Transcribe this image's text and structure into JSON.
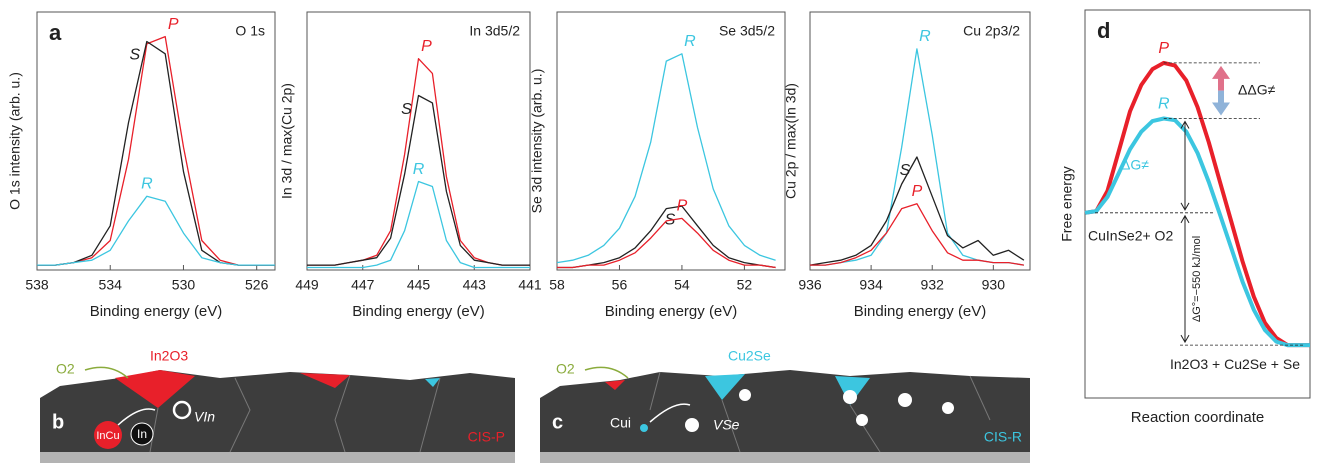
{
  "chart_data": [
    {
      "type": "line",
      "panel_label": "a",
      "title": "O 1s",
      "x_label": "Binding energy (eV)",
      "y_label": "O 1s intensity (arb. u.)",
      "x": [
        538,
        537,
        536,
        535,
        534,
        533,
        532,
        531,
        530,
        529,
        528,
        527,
        526,
        525
      ],
      "xlim": [
        538,
        525
      ],
      "xticks": [
        538,
        534,
        530,
        526
      ],
      "ylim": [
        0,
        1.05
      ],
      "series": [
        {
          "name": "P",
          "color": "#e8202a",
          "values": [
            0.02,
            0.02,
            0.03,
            0.05,
            0.12,
            0.45,
            0.92,
            0.95,
            0.5,
            0.12,
            0.04,
            0.02,
            0.02,
            0.02
          ]
        },
        {
          "name": "S",
          "color": "#222222",
          "values": [
            0.02,
            0.02,
            0.03,
            0.06,
            0.18,
            0.6,
            0.93,
            0.88,
            0.4,
            0.08,
            0.03,
            0.02,
            0.02,
            0.02
          ]
        },
        {
          "name": "R",
          "color": "#3cc6e0",
          "values": [
            0.02,
            0.02,
            0.03,
            0.04,
            0.08,
            0.2,
            0.3,
            0.28,
            0.15,
            0.05,
            0.03,
            0.02,
            0.02,
            0.02
          ]
        }
      ]
    },
    {
      "type": "line",
      "title": "In 3d5/2",
      "x_label": "Binding energy (eV)",
      "y_label": "In 3d / max(Cu 2p)",
      "x": [
        449,
        448.5,
        448,
        447.5,
        447,
        446.5,
        446,
        445.5,
        445,
        444.5,
        444,
        443.5,
        443,
        442.5,
        442,
        441.5,
        441
      ],
      "xlim": [
        449,
        441
      ],
      "xticks": [
        449,
        447,
        445,
        443,
        441
      ],
      "ylim": [
        0,
        1.05
      ],
      "series": [
        {
          "name": "P",
          "color": "#e8202a",
          "values": [
            0.02,
            0.02,
            0.02,
            0.03,
            0.04,
            0.06,
            0.16,
            0.47,
            0.86,
            0.8,
            0.38,
            0.12,
            0.05,
            0.03,
            0.02,
            0.02,
            0.02
          ]
        },
        {
          "name": "S",
          "color": "#222222",
          "values": [
            0.02,
            0.02,
            0.02,
            0.03,
            0.04,
            0.05,
            0.13,
            0.39,
            0.71,
            0.68,
            0.32,
            0.1,
            0.04,
            0.03,
            0.02,
            0.02,
            0.02
          ]
        },
        {
          "name": "R",
          "color": "#3cc6e0",
          "values": [
            0.01,
            0.01,
            0.01,
            0.01,
            0.01,
            0.02,
            0.04,
            0.16,
            0.36,
            0.34,
            0.12,
            0.03,
            0.01,
            0.01,
            0.01,
            0.01,
            0.01
          ]
        }
      ]
    },
    {
      "type": "line",
      "title": "Se 3d5/2",
      "x_label": "Binding energy (eV)",
      "y_label": "Se 3d intensity (arb. u.)",
      "x": [
        58,
        57.5,
        57,
        56.5,
        56,
        55.5,
        55,
        54.5,
        54,
        53.5,
        53,
        52.5,
        52,
        51.5,
        51
      ],
      "xlim": [
        58,
        50.7
      ],
      "xticks": [
        58,
        56,
        54,
        52
      ],
      "ylim": [
        0,
        1.05
      ],
      "series": [
        {
          "name": "R",
          "color": "#3cc6e0",
          "values": [
            0.03,
            0.04,
            0.06,
            0.1,
            0.17,
            0.3,
            0.52,
            0.85,
            0.88,
            0.58,
            0.33,
            0.18,
            0.1,
            0.06,
            0.04
          ]
        },
        {
          "name": "S",
          "color": "#222222",
          "values": [
            0.01,
            0.01,
            0.02,
            0.03,
            0.05,
            0.09,
            0.16,
            0.25,
            0.26,
            0.18,
            0.1,
            0.05,
            0.03,
            0.02,
            0.01
          ]
        },
        {
          "name": "P",
          "color": "#e8202a",
          "values": [
            0.01,
            0.01,
            0.02,
            0.02,
            0.04,
            0.07,
            0.13,
            0.2,
            0.21,
            0.15,
            0.08,
            0.04,
            0.02,
            0.02,
            0.01
          ]
        }
      ]
    },
    {
      "type": "line",
      "title": "Cu 2p3/2",
      "x_label": "Binding energy (eV)",
      "y_label": "Cu 2p / max(In 3d)",
      "x": [
        936,
        935.5,
        935,
        934.5,
        934,
        933.5,
        933,
        932.5,
        932,
        931.5,
        931,
        930.5,
        930,
        929.5,
        929
      ],
      "xlim": [
        936,
        928.8
      ],
      "xticks": [
        936,
        934,
        932,
        930
      ],
      "ylim": [
        0,
        1.05
      ],
      "series": [
        {
          "name": "R",
          "color": "#3cc6e0",
          "values": [
            0.02,
            0.02,
            0.03,
            0.04,
            0.06,
            0.15,
            0.5,
            0.9,
            0.55,
            0.15,
            0.06,
            0.04,
            0.03,
            0.03,
            0.02
          ]
        },
        {
          "name": "S",
          "color": "#222222",
          "values": [
            0.02,
            0.03,
            0.04,
            0.06,
            0.1,
            0.2,
            0.35,
            0.46,
            0.3,
            0.14,
            0.09,
            0.12,
            0.06,
            0.08,
            0.04
          ]
        },
        {
          "name": "P",
          "color": "#e8202a",
          "values": [
            0.02,
            0.02,
            0.03,
            0.05,
            0.08,
            0.15,
            0.25,
            0.27,
            0.16,
            0.07,
            0.04,
            0.04,
            0.03,
            0.03,
            0.02
          ]
        }
      ]
    },
    {
      "type": "line",
      "panel_label": "d",
      "x_label": "Reaction coordinate",
      "y_label": "Free energy",
      "x": [
        0,
        0.05,
        0.1,
        0.15,
        0.2,
        0.25,
        0.3,
        0.35,
        0.4,
        0.45,
        0.5,
        0.55,
        0.6,
        0.65,
        0.7,
        0.75,
        0.8,
        0.85,
        0.9,
        0.95,
        1
      ],
      "xlim": [
        0,
        1
      ],
      "ylim": [
        -2.1,
        2.3
      ],
      "series": [
        {
          "name": "P",
          "color": "#e8202a",
          "values": [
            0,
            0.02,
            0.25,
            0.7,
            1.15,
            1.45,
            1.63,
            1.7,
            1.67,
            1.5,
            1.2,
            0.8,
            0.35,
            -0.1,
            -0.55,
            -0.95,
            -1.25,
            -1.42,
            -1.5,
            -1.5,
            -1.5
          ]
        },
        {
          "name": "R",
          "color": "#3cc6e0",
          "values": [
            0,
            0.02,
            0.18,
            0.45,
            0.72,
            0.92,
            1.04,
            1.07,
            1.05,
            0.92,
            0.68,
            0.35,
            -0.02,
            -0.4,
            -0.78,
            -1.1,
            -1.33,
            -1.46,
            -1.5,
            -1.5,
            -1.5
          ]
        }
      ],
      "annotations": [
        "ΔΔG≠",
        "ΔG≠",
        "CuInSe2+ O2",
        "ΔG°=−550 kJ/mol",
        "In2O3 + Cu2Se + Se"
      ]
    }
  ],
  "schematics": [
    {
      "label": "b",
      "texts": [
        "O2",
        "In2O3",
        "InCu",
        "In",
        "VIn",
        "CIS-P"
      ]
    },
    {
      "label": "c",
      "texts": [
        "O2",
        "Cu2Se",
        "Cui",
        "VSe",
        "CIS-R"
      ]
    }
  ]
}
